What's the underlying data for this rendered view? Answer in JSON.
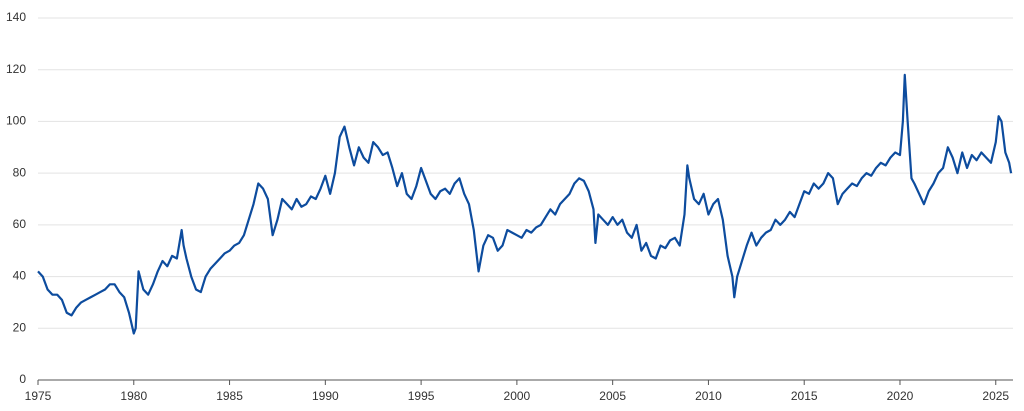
{
  "chart_data": {
    "type": "line",
    "x": [
      1975.0,
      1975.25,
      1975.5,
      1975.75,
      1976.0,
      1976.25,
      1976.5,
      1976.75,
      1977.0,
      1977.25,
      1977.5,
      1977.75,
      1978.0,
      1978.25,
      1978.5,
      1978.75,
      1979.0,
      1979.25,
      1979.5,
      1979.75,
      1980.0,
      1980.1,
      1980.25,
      1980.5,
      1980.75,
      1981.0,
      1981.25,
      1981.5,
      1981.75,
      1982.0,
      1982.25,
      1982.5,
      1982.6,
      1982.75,
      1983.0,
      1983.25,
      1983.5,
      1983.75,
      1984.0,
      1984.25,
      1984.5,
      1984.75,
      1985.0,
      1985.25,
      1985.5,
      1985.75,
      1986.0,
      1986.25,
      1986.5,
      1986.75,
      1987.0,
      1987.25,
      1987.5,
      1987.75,
      1988.0,
      1988.25,
      1988.5,
      1988.75,
      1989.0,
      1989.25,
      1989.5,
      1989.75,
      1990.0,
      1990.25,
      1990.5,
      1990.75,
      1991.0,
      1991.25,
      1991.5,
      1991.75,
      1992.0,
      1992.25,
      1992.5,
      1992.75,
      1993.0,
      1993.25,
      1993.5,
      1993.75,
      1994.0,
      1994.25,
      1994.5,
      1994.75,
      1995.0,
      1995.25,
      1995.5,
      1995.75,
      1996.0,
      1996.25,
      1996.5,
      1996.75,
      1997.0,
      1997.25,
      1997.5,
      1997.75,
      1998.0,
      1998.25,
      1998.5,
      1998.75,
      1999.0,
      1999.25,
      1999.5,
      1999.75,
      2000.0,
      2000.25,
      2000.5,
      2000.75,
      2001.0,
      2001.25,
      2001.5,
      2001.75,
      2002.0,
      2002.25,
      2002.5,
      2002.75,
      2003.0,
      2003.25,
      2003.5,
      2003.75,
      2004.0,
      2004.1,
      2004.25,
      2004.5,
      2004.75,
      2005.0,
      2005.25,
      2005.5,
      2005.75,
      2006.0,
      2006.25,
      2006.5,
      2006.75,
      2007.0,
      2007.25,
      2007.5,
      2007.75,
      2008.0,
      2008.25,
      2008.5,
      2008.75,
      2008.9,
      2009.0,
      2009.25,
      2009.5,
      2009.75,
      2010.0,
      2010.25,
      2010.5,
      2010.75,
      2011.0,
      2011.25,
      2011.35,
      2011.5,
      2011.75,
      2012.0,
      2012.25,
      2012.5,
      2012.75,
      2013.0,
      2013.25,
      2013.5,
      2013.75,
      2014.0,
      2014.25,
      2014.5,
      2014.75,
      2015.0,
      2015.25,
      2015.5,
      2015.75,
      2016.0,
      2016.25,
      2016.5,
      2016.75,
      2017.0,
      2017.25,
      2017.5,
      2017.75,
      2018.0,
      2018.25,
      2018.5,
      2018.75,
      2019.0,
      2019.25,
      2019.5,
      2019.75,
      2020.0,
      2020.15,
      2020.25,
      2020.4,
      2020.6,
      2020.75,
      2021.0,
      2021.25,
      2021.5,
      2021.75,
      2022.0,
      2022.25,
      2022.5,
      2022.75,
      2023.0,
      2023.25,
      2023.5,
      2023.75,
      2024.0,
      2024.25,
      2024.5,
      2024.75,
      2025.0,
      2025.15,
      2025.3,
      2025.5,
      2025.7,
      2025.8
    ],
    "series": [
      {
        "color": "#0d4c9e",
        "values": [
          42,
          40,
          35,
          33,
          33,
          31,
          26,
          25,
          28,
          30,
          31,
          32,
          33,
          34,
          35,
          37,
          37,
          34,
          32,
          26,
          18,
          20,
          42,
          35,
          33,
          37,
          42,
          46,
          44,
          48,
          47,
          58,
          52,
          47,
          40,
          35,
          34,
          40,
          43,
          45,
          47,
          49,
          50,
          52,
          53,
          56,
          62,
          68,
          76,
          74,
          70,
          56,
          62,
          70,
          68,
          66,
          70,
          67,
          68,
          71,
          70,
          74,
          79,
          72,
          80,
          94,
          98,
          90,
          83,
          90,
          86,
          84,
          92,
          90,
          87,
          88,
          82,
          75,
          80,
          72,
          70,
          75,
          82,
          77,
          72,
          70,
          73,
          74,
          72,
          76,
          78,
          72,
          68,
          58,
          42,
          52,
          56,
          55,
          50,
          52,
          58,
          57,
          56,
          55,
          58,
          57,
          59,
          60,
          63,
          66,
          64,
          68,
          70,
          72,
          76,
          78,
          77,
          73,
          66,
          53,
          64,
          62,
          60,
          63,
          60,
          62,
          57,
          55,
          60,
          50,
          53,
          48,
          47,
          52,
          51,
          54,
          55,
          52,
          64,
          83,
          78,
          70,
          68,
          72,
          64,
          68,
          70,
          62,
          48,
          40,
          32,
          40,
          46,
          52,
          57,
          52,
          55,
          57,
          58,
          62,
          60,
          62,
          65,
          63,
          68,
          73,
          72,
          76,
          74,
          76,
          80,
          78,
          68,
          72,
          74,
          76,
          75,
          78,
          80,
          79,
          82,
          84,
          83,
          86,
          88,
          87,
          100,
          118,
          100,
          78,
          76,
          72,
          68,
          73,
          76,
          80,
          82,
          90,
          86,
          80,
          88,
          82,
          87,
          85,
          88,
          86,
          84,
          92,
          102,
          100,
          88,
          84,
          80
        ]
      }
    ],
    "xlim": [
      1975,
      2025.9
    ],
    "xticks": [
      1975,
      1980,
      1985,
      1990,
      1995,
      2000,
      2005,
      2010,
      2015,
      2020,
      2025
    ],
    "ylim": [
      0,
      140
    ],
    "yticks": [
      0,
      20,
      40,
      60,
      80,
      100,
      120,
      140
    ],
    "grid": true
  }
}
